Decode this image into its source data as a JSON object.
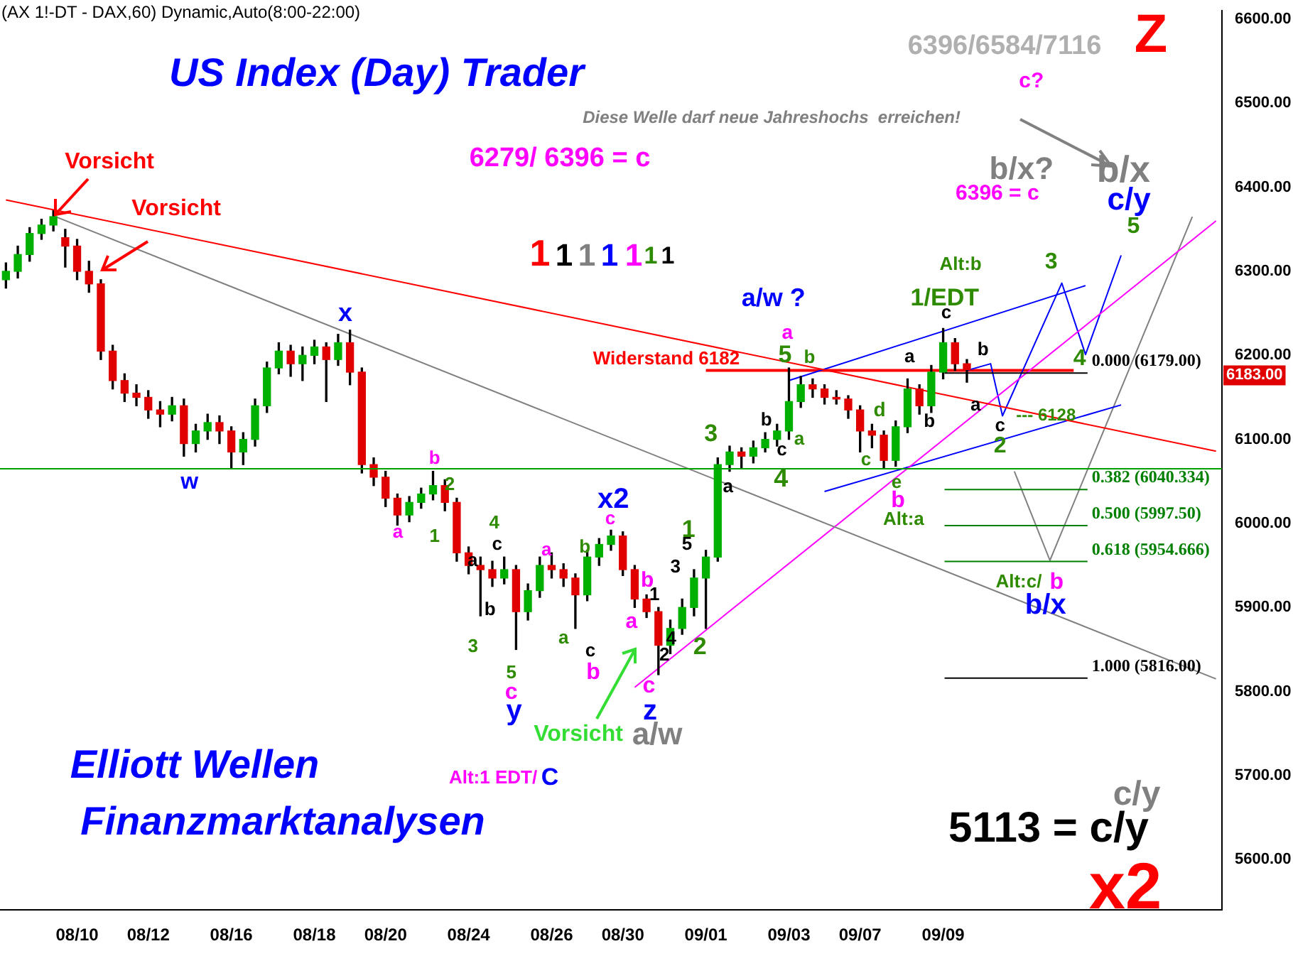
{
  "chart_data": {
    "type": "candlestick",
    "title": "US Index (Day) Trader",
    "categories": [
      null,
      null,
      null,
      null,
      null,
      null,
      "08/10",
      null,
      null,
      null,
      null,
      null,
      "08/12",
      null,
      null,
      null,
      null,
      null,
      null,
      "08/16",
      null,
      null,
      null,
      null,
      null,
      null,
      "08/18",
      null,
      null,
      null,
      null,
      null,
      "08/20",
      null,
      null,
      null,
      null,
      null,
      null,
      "08/24",
      null,
      null,
      null,
      null,
      null,
      null,
      "08/26",
      null,
      null,
      null,
      null,
      null,
      "08/30",
      null,
      null,
      null,
      null,
      null,
      null,
      "09/01",
      null,
      null,
      null,
      null,
      null,
      null,
      "09/03",
      null,
      null,
      null,
      null,
      null,
      "09/07",
      null,
      null,
      null,
      null,
      null,
      null,
      "09/09",
      null,
      null,
      null,
      null,
      null,
      null,
      null,
      null,
      null,
      null,
      null,
      null,
      null,
      null,
      null,
      null,
      null,
      null,
      null,
      null,
      null,
      null,
      null
    ],
    "ohlc": [
      [
        6290,
        6310,
        6280,
        6300
      ],
      [
        6300,
        6330,
        6292,
        6320
      ],
      [
        6320,
        6352,
        6312,
        6345
      ],
      [
        6345,
        6362,
        6338,
        6355
      ],
      [
        6355,
        6372,
        6348,
        6365
      ],
      [
        6340,
        6350,
        6305,
        6330
      ],
      [
        6330,
        6338,
        6290,
        6300
      ],
      [
        6300,
        6312,
        6275,
        6285
      ],
      [
        6285,
        6290,
        6195,
        6205
      ],
      [
        6205,
        6212,
        6160,
        6170
      ],
      [
        6170,
        6178,
        6145,
        6155
      ],
      [
        6155,
        6165,
        6140,
        6150
      ],
      [
        6150,
        6158,
        6125,
        6135
      ],
      [
        6135,
        6145,
        6115,
        6130
      ],
      [
        6130,
        6150,
        6122,
        6140
      ],
      [
        6140,
        6148,
        6080,
        6095
      ],
      [
        6095,
        6118,
        6085,
        6110
      ],
      [
        6110,
        6130,
        6100,
        6120
      ],
      [
        6120,
        6128,
        6095,
        6110
      ],
      [
        6110,
        6115,
        6065,
        6085
      ],
      [
        6085,
        6108,
        6070,
        6100
      ],
      [
        6100,
        6148,
        6092,
        6140
      ],
      [
        6140,
        6192,
        6132,
        6185
      ],
      [
        6185,
        6215,
        6178,
        6205
      ],
      [
        6205,
        6212,
        6175,
        6190
      ],
      [
        6190,
        6210,
        6170,
        6200
      ],
      [
        6200,
        6218,
        6190,
        6210
      ],
      [
        6210,
        6215,
        6145,
        6195
      ],
      [
        6195,
        6225,
        6188,
        6215
      ],
      [
        6215,
        6230,
        6165,
        6180
      ],
      [
        6180,
        6185,
        6060,
        6070
      ],
      [
        6070,
        6078,
        6045,
        6055
      ],
      [
        6055,
        6062,
        6020,
        6030
      ],
      [
        6030,
        6035,
        5998,
        6010
      ],
      [
        6010,
        6032,
        6002,
        6025
      ],
      [
        6025,
        6042,
        6018,
        6035
      ],
      [
        6035,
        6062,
        6028,
        6045
      ],
      [
        6045,
        6052,
        6015,
        6025
      ],
      [
        6025,
        6030,
        5955,
        5965
      ],
      [
        5965,
        5972,
        5940,
        5950
      ],
      [
        5950,
        5960,
        5890,
        5945
      ],
      [
        5945,
        5955,
        5925,
        5935
      ],
      [
        5935,
        5960,
        5928,
        5945
      ],
      [
        5945,
        5950,
        5850,
        5895
      ],
      [
        5895,
        5928,
        5885,
        5920
      ],
      [
        5920,
        5960,
        5912,
        5950
      ],
      [
        5950,
        5965,
        5935,
        5945
      ],
      [
        5945,
        5952,
        5925,
        5935
      ],
      [
        5935,
        5940,
        5875,
        5915
      ],
      [
        5915,
        5968,
        5908,
        5960
      ],
      [
        5960,
        5982,
        5950,
        5975
      ],
      [
        5975,
        5992,
        5968,
        5985
      ],
      [
        5985,
        5990,
        5938,
        5945
      ],
      [
        5945,
        5950,
        5900,
        5910
      ],
      [
        5910,
        5915,
        5888,
        5895
      ],
      [
        5895,
        5900,
        5820,
        5855
      ],
      [
        5855,
        5885,
        5845,
        5875
      ],
      [
        5875,
        5910,
        5868,
        5900
      ],
      [
        5900,
        5945,
        5890,
        5935
      ],
      [
        5935,
        5968,
        5875,
        5960
      ],
      [
        5960,
        6078,
        5955,
        6070
      ],
      [
        6070,
        6092,
        6062,
        6085
      ],
      [
        6085,
        6090,
        6065,
        6080
      ],
      [
        6080,
        6098,
        6072,
        6090
      ],
      [
        6090,
        6108,
        6085,
        6100
      ],
      [
        6100,
        6118,
        6092,
        6110
      ],
      [
        6110,
        6185,
        6100,
        6145
      ],
      [
        6145,
        6175,
        6138,
        6165
      ],
      [
        6165,
        6172,
        6150,
        6160
      ],
      [
        6160,
        6165,
        6142,
        6150
      ],
      [
        6150,
        6158,
        6142,
        6148
      ],
      [
        6148,
        6152,
        6125,
        6135
      ],
      [
        6135,
        6140,
        6085,
        6110
      ],
      [
        6110,
        6118,
        6090,
        6105
      ],
      [
        6105,
        6110,
        6065,
        6075
      ],
      [
        6075,
        6122,
        6068,
        6115
      ],
      [
        6115,
        6172,
        6108,
        6160
      ],
      [
        6160,
        6165,
        6130,
        6140
      ],
      [
        6140,
        6188,
        6132,
        6180
      ],
      [
        6180,
        6232,
        6172,
        6215
      ],
      [
        6215,
        6220,
        6182,
        6190
      ],
      [
        6190,
        6195,
        6168,
        6183
      ],
      null,
      null,
      null,
      null,
      null,
      null,
      null,
      null,
      null,
      null,
      null,
      null,
      null,
      null,
      null,
      null,
      null,
      null,
      null,
      null,
      null
    ],
    "series": [
      {
        "type": "line",
        "color": "#ff0000",
        "values": [
          6385,
          null,
          null,
          null,
          null,
          null,
          null,
          null,
          null,
          null,
          null,
          null,
          null,
          null,
          null,
          null,
          null,
          null,
          null,
          null,
          null,
          null,
          null,
          null,
          null,
          null,
          null,
          null,
          null,
          null,
          null,
          null,
          null,
          null,
          null,
          null,
          null,
          null,
          null,
          null,
          null,
          null,
          null,
          null,
          null,
          null,
          null,
          null,
          null,
          null,
          null,
          null,
          null,
          null,
          null,
          null,
          null,
          null,
          null,
          null,
          null,
          null,
          null,
          null,
          null,
          null,
          null,
          null,
          null,
          null,
          null,
          null,
          null,
          null,
          null,
          null,
          null,
          null,
          null,
          null,
          null,
          null,
          null,
          null,
          null,
          null,
          null,
          null,
          null,
          null,
          null,
          null,
          null,
          null,
          null,
          null,
          null,
          null,
          null,
          null,
          null,
          null,
          6086
        ]
      },
      {
        "type": "line",
        "color": "#808080",
        "values": [
          null,
          null,
          null,
          null,
          6366,
          null,
          null,
          null,
          null,
          null,
          null,
          null,
          null,
          null,
          null,
          null,
          null,
          null,
          null,
          null,
          null,
          null,
          null,
          null,
          null,
          null,
          null,
          null,
          null,
          null,
          null,
          null,
          null,
          null,
          null,
          null,
          null,
          null,
          null,
          null,
          null,
          null,
          null,
          null,
          null,
          null,
          null,
          null,
          null,
          null,
          null,
          null,
          null,
          null,
          null,
          null,
          null,
          null,
          null,
          null,
          null,
          null,
          null,
          null,
          null,
          null,
          null,
          null,
          null,
          null,
          null,
          null,
          null,
          null,
          null,
          null,
          null,
          null,
          null,
          null,
          null,
          null,
          null,
          null,
          null,
          null,
          null,
          null,
          null,
          null,
          null,
          null,
          null,
          null,
          null,
          null,
          null,
          null,
          null,
          null,
          null,
          null,
          5815
        ]
      },
      {
        "type": "line",
        "color": "#ff00ff",
        "values": [
          null,
          null,
          null,
          null,
          null,
          null,
          null,
          null,
          null,
          null,
          null,
          null,
          null,
          null,
          null,
          null,
          null,
          null,
          null,
          null,
          null,
          null,
          null,
          null,
          null,
          null,
          null,
          null,
          null,
          null,
          null,
          null,
          null,
          null,
          null,
          null,
          null,
          null,
          null,
          null,
          null,
          null,
          null,
          null,
          null,
          null,
          null,
          null,
          null,
          null,
          null,
          null,
          null,
          5805,
          null,
          null,
          null,
          null,
          null,
          null,
          null,
          null,
          null,
          null,
          null,
          null,
          null,
          null,
          null,
          null,
          null,
          null,
          null,
          null,
          null,
          null,
          null,
          null,
          null,
          null,
          null,
          null,
          null,
          null,
          null,
          null,
          null,
          null,
          null,
          null,
          null,
          null,
          null,
          null,
          null,
          null,
          null,
          null,
          null,
          null,
          null,
          null,
          6360
        ]
      },
      {
        "type": "line",
        "color": "#0000ff",
        "values": [
          null,
          null,
          null,
          null,
          null,
          null,
          null,
          null,
          null,
          null,
          null,
          null,
          null,
          null,
          null,
          null,
          null,
          null,
          null,
          null,
          null,
          null,
          null,
          null,
          null,
          null,
          null,
          null,
          null,
          null,
          null,
          null,
          null,
          null,
          null,
          null,
          null,
          null,
          null,
          null,
          null,
          null,
          null,
          null,
          null,
          null,
          null,
          null,
          null,
          null,
          null,
          null,
          null,
          null,
          null,
          null,
          null,
          null,
          null,
          null,
          null,
          null,
          null,
          null,
          null,
          null,
          6170,
          null,
          null,
          null,
          null,
          null,
          null,
          null,
          null,
          null,
          null,
          null,
          null,
          null,
          null,
          null,
          null,
          null,
          null,
          null,
          null,
          null,
          null,
          null,
          null,
          6283,
          null,
          null,
          null,
          null,
          null,
          null,
          null,
          null,
          null,
          null,
          null
        ]
      },
      {
        "type": "line",
        "color": "#0000ff",
        "values": [
          null,
          null,
          null,
          null,
          null,
          null,
          null,
          null,
          null,
          null,
          null,
          null,
          null,
          null,
          null,
          null,
          null,
          null,
          null,
          null,
          null,
          null,
          null,
          null,
          null,
          null,
          null,
          null,
          null,
          null,
          null,
          null,
          null,
          null,
          null,
          null,
          null,
          null,
          null,
          null,
          null,
          null,
          null,
          null,
          null,
          null,
          null,
          null,
          null,
          null,
          null,
          null,
          null,
          null,
          null,
          null,
          null,
          null,
          null,
          null,
          null,
          null,
          null,
          null,
          null,
          null,
          null,
          null,
          null,
          6038,
          null,
          null,
          null,
          null,
          null,
          null,
          null,
          null,
          null,
          null,
          null,
          null,
          null,
          null,
          null,
          null,
          null,
          null,
          null,
          null,
          null,
          null,
          null,
          null,
          6141,
          null,
          null,
          null,
          null,
          null,
          null,
          null,
          null
        ]
      },
      {
        "type": "line",
        "color": "#0000ff",
        "values": [
          null,
          null,
          null,
          null,
          null,
          null,
          null,
          null,
          null,
          null,
          null,
          null,
          null,
          null,
          null,
          null,
          null,
          null,
          null,
          null,
          null,
          null,
          null,
          null,
          null,
          null,
          null,
          null,
          null,
          null,
          null,
          null,
          null,
          null,
          null,
          null,
          null,
          null,
          null,
          null,
          null,
          null,
          null,
          null,
          null,
          null,
          null,
          null,
          null,
          null,
          null,
          null,
          null,
          null,
          null,
          null,
          null,
          null,
          null,
          null,
          null,
          null,
          null,
          null,
          null,
          null,
          null,
          null,
          null,
          null,
          null,
          null,
          null,
          null,
          null,
          null,
          null,
          null,
          null,
          null,
          null,
          6182,
          null,
          6190,
          6128,
          null,
          null,
          null,
          null,
          6286,
          null,
          6201,
          null,
          null,
          6319,
          null,
          null,
          null,
          null,
          null,
          null,
          null,
          null
        ]
      },
      {
        "type": "line",
        "color": "#808080",
        "values": [
          null,
          null,
          null,
          null,
          null,
          null,
          null,
          null,
          null,
          null,
          null,
          null,
          null,
          null,
          null,
          null,
          null,
          null,
          null,
          null,
          null,
          null,
          null,
          null,
          null,
          null,
          null,
          null,
          null,
          null,
          null,
          null,
          null,
          null,
          null,
          null,
          null,
          null,
          null,
          null,
          null,
          null,
          null,
          null,
          null,
          null,
          null,
          null,
          null,
          null,
          null,
          null,
          null,
          null,
          null,
          null,
          null,
          null,
          null,
          null,
          null,
          null,
          null,
          null,
          null,
          null,
          null,
          null,
          null,
          null,
          null,
          null,
          null,
          null,
          null,
          null,
          null,
          null,
          null,
          null,
          null,
          null,
          null,
          null,
          null,
          6062,
          null,
          null,
          5956,
          null,
          null,
          null,
          null,
          null,
          null,
          null,
          null,
          null,
          null,
          null,
          6365,
          null,
          null
        ]
      },
      {
        "type": "line",
        "color": "#ff0000",
        "values": [
          null,
          null,
          null,
          null,
          null,
          null,
          null,
          null,
          null,
          null,
          null,
          null,
          null,
          null,
          null,
          null,
          null,
          null,
          null,
          null,
          null,
          null,
          null,
          null,
          null,
          null,
          null,
          null,
          null,
          null,
          null,
          null,
          null,
          null,
          null,
          null,
          null,
          null,
          null,
          null,
          null,
          null,
          null,
          null,
          null,
          null,
          null,
          null,
          null,
          null,
          null,
          null,
          null,
          null,
          null,
          null,
          null,
          null,
          null,
          6182,
          null,
          null,
          null,
          null,
          null,
          null,
          null,
          null,
          null,
          null,
          null,
          null,
          null,
          null,
          null,
          null,
          null,
          null,
          null,
          null,
          null,
          null,
          null,
          null,
          null,
          null,
          null,
          null,
          null,
          null,
          6182,
          null,
          null,
          null,
          null,
          null,
          null,
          null,
          null,
          null,
          null,
          null,
          null
        ]
      }
    ],
    "ref_lines": [
      {
        "axis": "y",
        "value": 6065,
        "color": "#00a000"
      },
      {
        "axis": "y",
        "value": 6179,
        "label": "0.000 (6179.00)",
        "color": "#000000"
      },
      {
        "axis": "y",
        "value": 6040.334,
        "label": "0.382 (6040.334)",
        "color": "#008000"
      },
      {
        "axis": "y",
        "value": 5997.5,
        "label": "0.500 (5997.50)",
        "color": "#008000"
      },
      {
        "axis": "y",
        "value": 5954.666,
        "label": "0.618 (5954.666)",
        "color": "#008000"
      },
      {
        "axis": "y",
        "value": 5816,
        "label": "1.000 (5816.00)",
        "color": "#000000"
      }
    ],
    "ylim": [
      5540,
      6610
    ],
    "yticks": [
      {
        "value": 5600,
        "label": "5600.00"
      },
      {
        "value": 5700,
        "label": "5700.00"
      },
      {
        "value": 5800,
        "label": "5800.00"
      },
      {
        "value": 5900,
        "label": "5900.00"
      },
      {
        "value": 6000,
        "label": "6000.00"
      },
      {
        "value": 6100,
        "label": "6100.00"
      },
      {
        "value": 6200,
        "label": "6200.00"
      },
      {
        "value": 6300,
        "label": "6300.00"
      },
      {
        "value": 6400,
        "label": "6400.00"
      },
      {
        "value": 6500,
        "label": "6500.00"
      },
      {
        "value": 6600,
        "label": "6600.00"
      }
    ],
    "annotations": [
      "(AX 1!-DT - DAX,60) Dynamic,Auto(8:00-22:00)",
      "Diese Welle darf neue Jahreshochs  erreichen!",
      "6279/ 6396 = c",
      "6396/6584/7116",
      "Z",
      "Vorsicht",
      "Vorsicht",
      "Vorsicht",
      "1",
      "1",
      "1",
      "1",
      "1",
      "1",
      "1",
      "Elliott Wellen",
      "Finanzmarktanalysen",
      "Alt:1 EDT/",
      "C",
      "c/y",
      "5113 = c/y",
      "x2",
      "w",
      "x",
      "b",
      "2",
      "a",
      "1",
      "3",
      "4",
      "c",
      "a",
      "b",
      "5",
      "c",
      "y",
      "a",
      "a",
      "c",
      "b",
      "b",
      "x2",
      "c",
      "b",
      "a",
      "c",
      "z",
      "a/w",
      "1",
      "2",
      "3",
      "5",
      "4",
      "1",
      "2",
      "3",
      "a",
      "b",
      "c",
      "a",
      "4",
      "5",
      "a",
      "b",
      "a/w ?",
      "d",
      "c",
      "e",
      "b",
      "Alt:a",
      "a",
      "b",
      "c",
      "b",
      "a",
      "1/EDT",
      "Alt:b",
      "3",
      "4",
      "5",
      "c/y",
      "b/x",
      "b/x?",
      "c",
      "2",
      "Alt:c/",
      "b",
      "b/x",
      "6396 = c",
      "c?",
      "--- 6128",
      "6183.00",
      "Widerstand 6182"
    ],
    "legend": false,
    "grid": false
  }
}
